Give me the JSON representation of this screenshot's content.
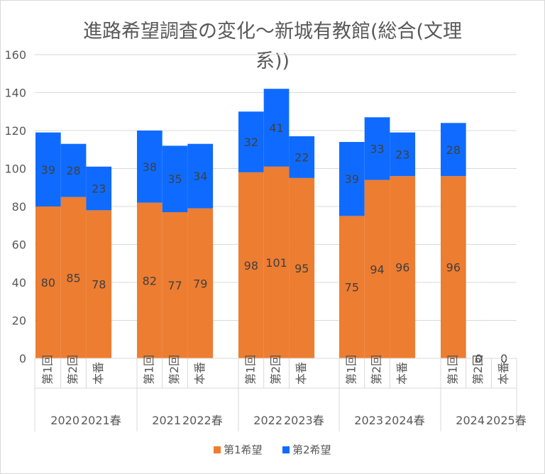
{
  "chart_data": {
    "type": "bar",
    "stacked": true,
    "title_lines": [
      "進路希望調査の変化～新城有教館(総合(文理",
      "系))"
    ],
    "ylim": [
      0,
      160
    ],
    "yticks": [
      0,
      20,
      40,
      60,
      80,
      100,
      120,
      140,
      160
    ],
    "grid": true,
    "legend_position": "bottom",
    "groups": [
      {
        "year": "2020",
        "spring": "2021春",
        "categories": [
          "第1回",
          "第2回",
          "本番"
        ]
      },
      {
        "year": "2021",
        "spring": "2022春",
        "categories": [
          "第1回",
          "第2回",
          "本番"
        ]
      },
      {
        "year": "2022",
        "spring": "2023春",
        "categories": [
          "第1回",
          "第2回",
          "本番"
        ]
      },
      {
        "year": "2023",
        "spring": "2024春",
        "categories": [
          "第1回",
          "第2回",
          "本番"
        ]
      },
      {
        "year": "2024",
        "spring": "2025春",
        "categories": [
          "第1回",
          "第2回",
          "本番"
        ]
      }
    ],
    "series": [
      {
        "name": "第1希望",
        "color": "#ED7D31",
        "values": [
          [
            80,
            85,
            78
          ],
          [
            82,
            77,
            79
          ],
          [
            98,
            101,
            95
          ],
          [
            75,
            94,
            96
          ],
          [
            96,
            0,
            0
          ]
        ]
      },
      {
        "name": "第2希望",
        "color": "#0F6BFF",
        "values": [
          [
            39,
            28,
            23
          ],
          [
            38,
            35,
            34
          ],
          [
            32,
            41,
            22
          ],
          [
            39,
            33,
            23
          ],
          [
            28,
            null,
            null
          ]
        ]
      }
    ],
    "zero_total_labels": [
      "0",
      "0"
    ]
  }
}
